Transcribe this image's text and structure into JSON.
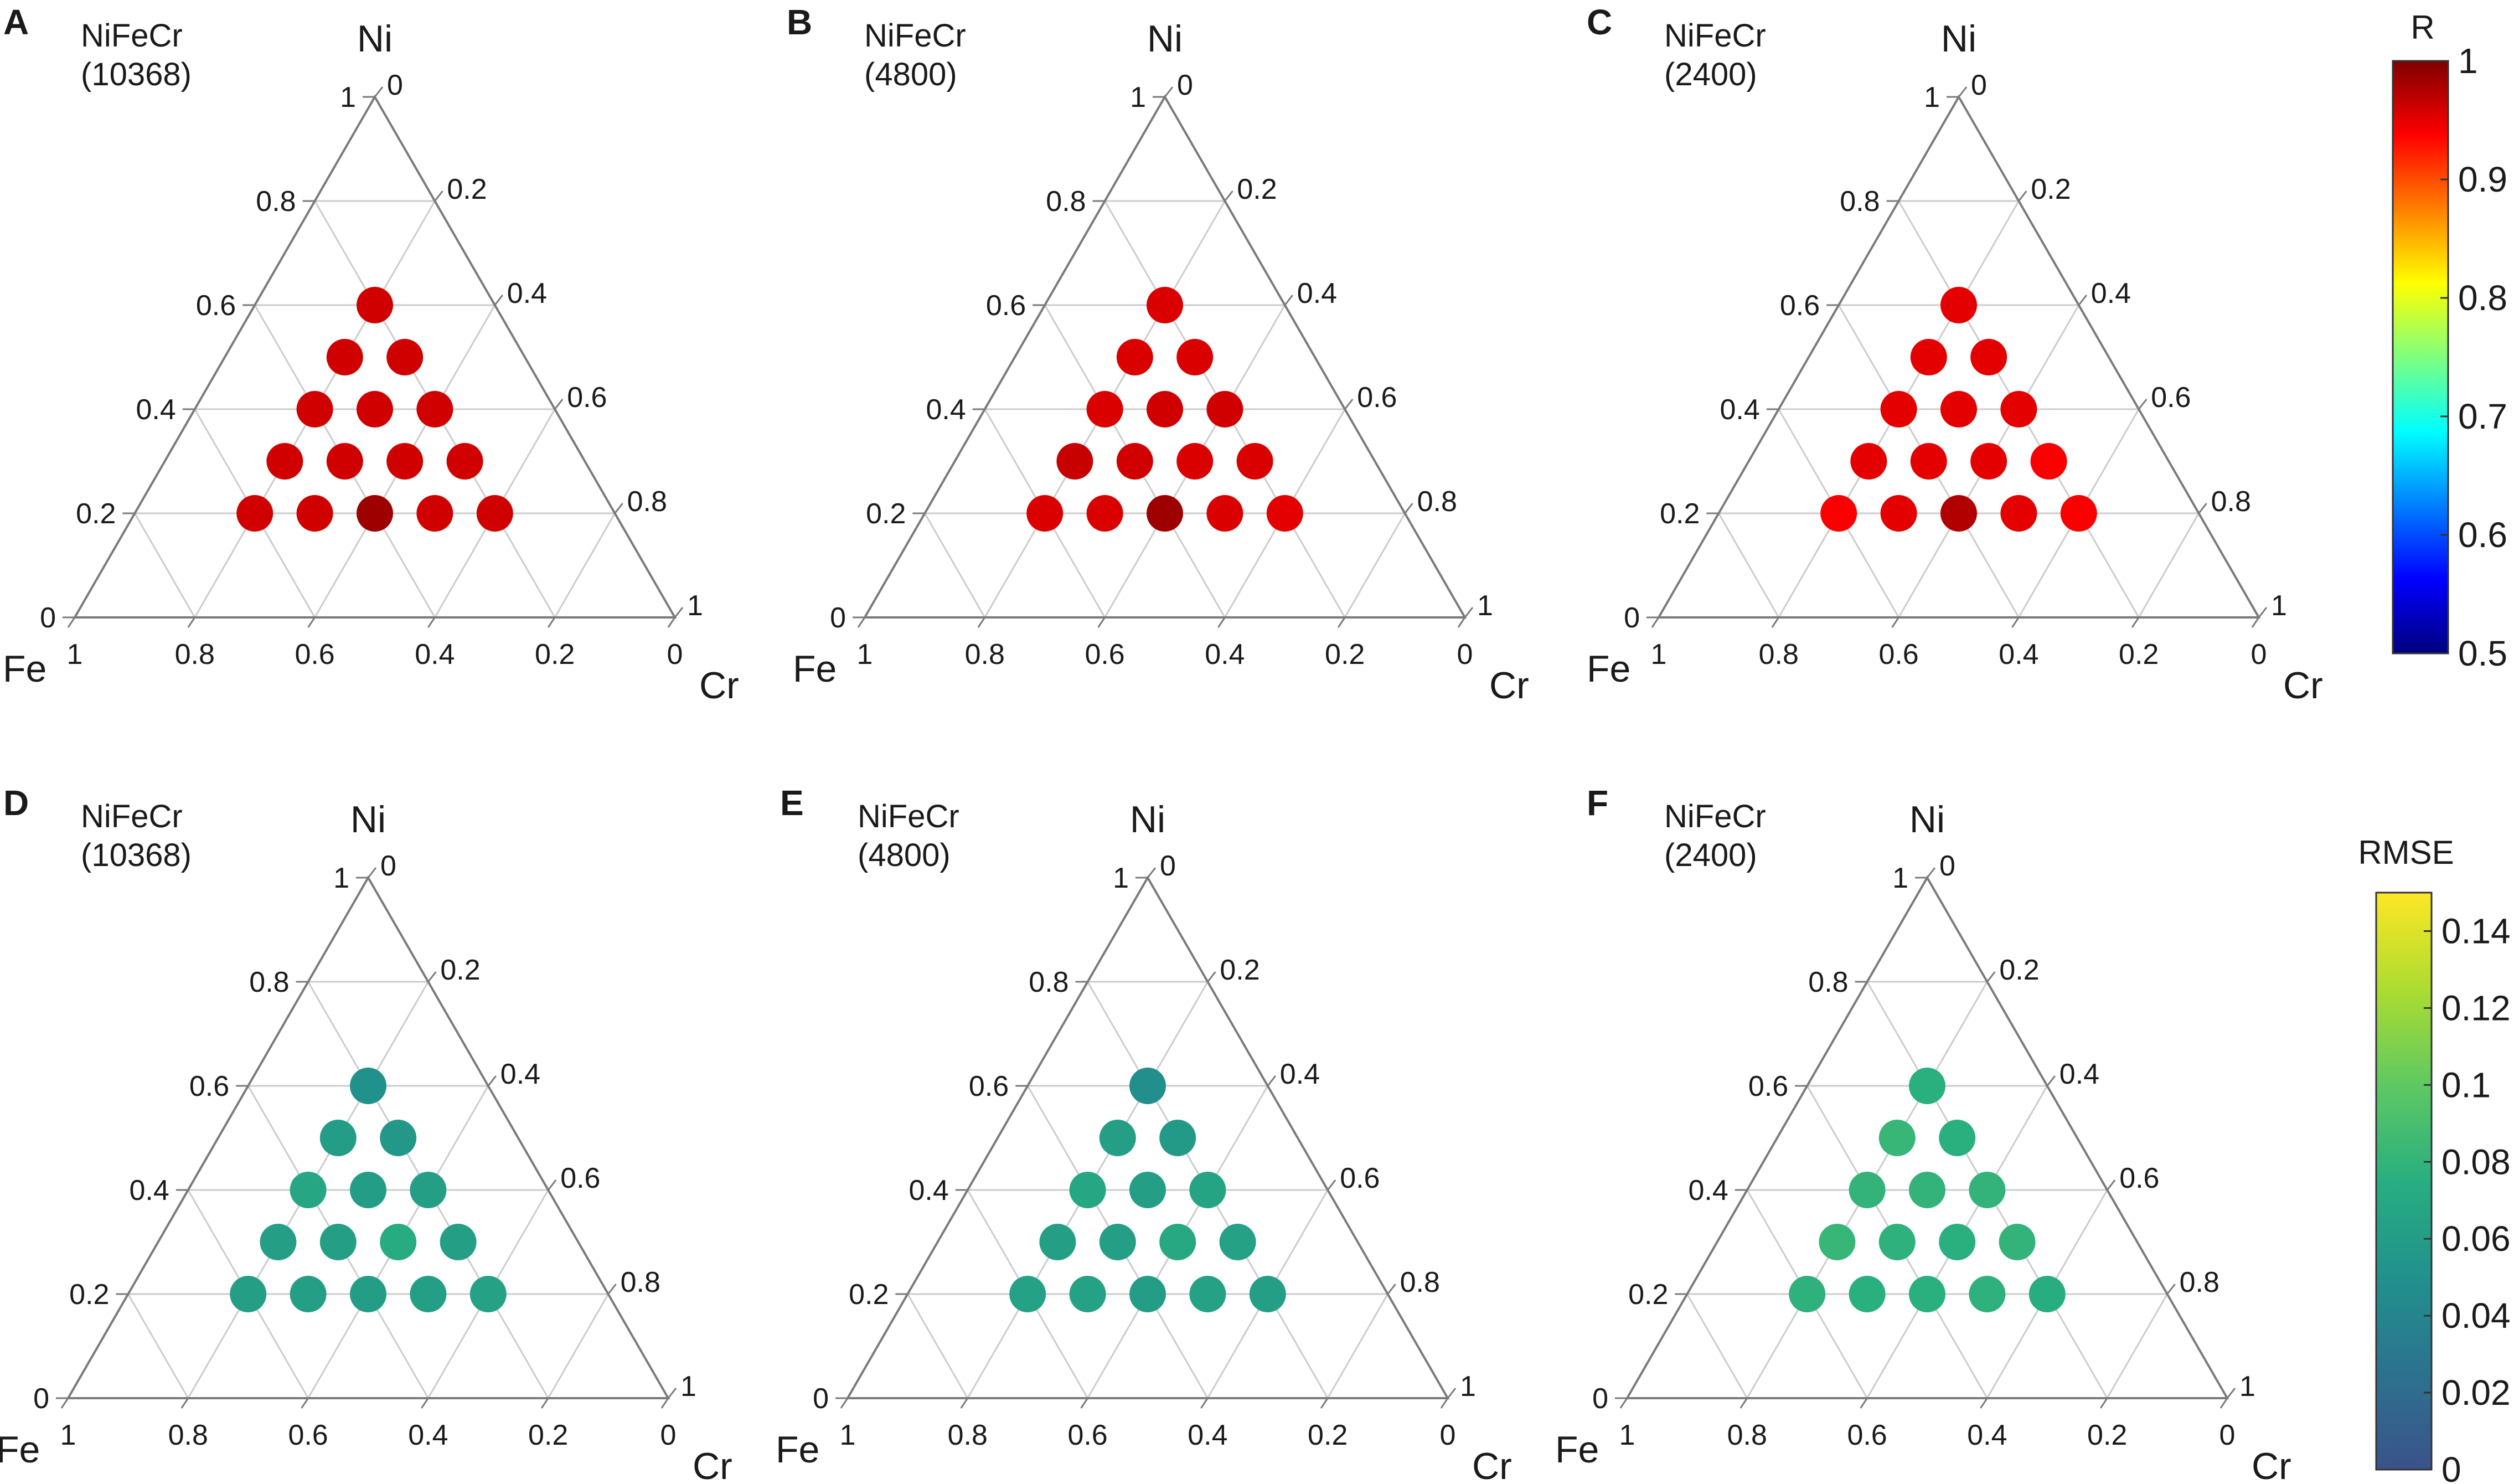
{
  "figure": {
    "panels": [
      {
        "letter": "A",
        "system": "NiFeCr",
        "count": "(10368)",
        "metric": "R"
      },
      {
        "letter": "B",
        "system": "NiFeCr",
        "count": "(4800)",
        "metric": "R"
      },
      {
        "letter": "C",
        "system": "NiFeCr",
        "count": "(2400)",
        "metric": "R"
      },
      {
        "letter": "D",
        "system": "NiFeCr",
        "count": "(10368)",
        "metric": "RMSE"
      },
      {
        "letter": "E",
        "system": "NiFeCr",
        "count": "(4800)",
        "metric": "RMSE"
      },
      {
        "letter": "F",
        "system": "NiFeCr",
        "count": "(2400)",
        "metric": "RMSE"
      }
    ],
    "axes": {
      "top": "Ni",
      "left": "Fe",
      "right": "Cr",
      "ticks_left_side": [
        "0",
        "0.2",
        "0.4",
        "0.6",
        "0.8",
        "1"
      ],
      "ticks_right_side": [
        "0",
        "0.2",
        "0.4",
        "0.6",
        "0.8",
        "1"
      ],
      "ticks_bottom": [
        "1",
        "0.8",
        "0.6",
        "0.4",
        "0.2",
        "0"
      ]
    },
    "colorbars": [
      {
        "title": "R",
        "ticks": [
          "1",
          "0.9",
          "0.8",
          "0.7",
          "0.6",
          "0.5"
        ],
        "range": [
          0.5,
          1
        ],
        "colormap": "jet",
        "stops": [
          "#00007f",
          "#0000ff",
          "#007fff",
          "#00ffff",
          "#7fff7f",
          "#ffff00",
          "#ff7f00",
          "#ff0000",
          "#7f0000"
        ]
      },
      {
        "title": "RMSE",
        "ticks": [
          "0.14",
          "0.12",
          "0.1",
          "0.08",
          "0.06",
          "0.04",
          "0.02",
          "0"
        ],
        "range": [
          0,
          0.15
        ],
        "colormap": "viridis",
        "stops": [
          "#3b528b",
          "#2c728e",
          "#21918c",
          "#28ae80",
          "#5ec962",
          "#addc30",
          "#fde725"
        ]
      }
    ],
    "grid_color": "#cccccc",
    "frame_color": "#7a7a7a"
  },
  "chart_data": [
    {
      "type": "scatter",
      "panel": "A",
      "title": "NiFeCr (10368)",
      "axes": [
        "Ni",
        "Fe",
        "Cr"
      ],
      "metric": "R",
      "scale": [
        0.5,
        1
      ],
      "points": [
        {
          "Ni": 0.6,
          "Fe": 0.2,
          "Cr": 0.2,
          "value": 0.96
        },
        {
          "Ni": 0.5,
          "Fe": 0.3,
          "Cr": 0.2,
          "value": 0.96
        },
        {
          "Ni": 0.5,
          "Fe": 0.2,
          "Cr": 0.3,
          "value": 0.96
        },
        {
          "Ni": 0.4,
          "Fe": 0.4,
          "Cr": 0.2,
          "value": 0.96
        },
        {
          "Ni": 0.4,
          "Fe": 0.3,
          "Cr": 0.3,
          "value": 0.96
        },
        {
          "Ni": 0.4,
          "Fe": 0.2,
          "Cr": 0.4,
          "value": 0.96
        },
        {
          "Ni": 0.3,
          "Fe": 0.5,
          "Cr": 0.2,
          "value": 0.96
        },
        {
          "Ni": 0.3,
          "Fe": 0.4,
          "Cr": 0.3,
          "value": 0.96
        },
        {
          "Ni": 0.3,
          "Fe": 0.3,
          "Cr": 0.4,
          "value": 0.96
        },
        {
          "Ni": 0.3,
          "Fe": 0.2,
          "Cr": 0.5,
          "value": 0.96
        },
        {
          "Ni": 0.2,
          "Fe": 0.6,
          "Cr": 0.2,
          "value": 0.96
        },
        {
          "Ni": 0.2,
          "Fe": 0.5,
          "Cr": 0.3,
          "value": 0.96
        },
        {
          "Ni": 0.2,
          "Fe": 0.4,
          "Cr": 0.4,
          "value": 0.985
        },
        {
          "Ni": 0.2,
          "Fe": 0.3,
          "Cr": 0.5,
          "value": 0.96
        },
        {
          "Ni": 0.2,
          "Fe": 0.2,
          "Cr": 0.6,
          "value": 0.96
        }
      ]
    },
    {
      "type": "scatter",
      "panel": "B",
      "title": "NiFeCr (4800)",
      "axes": [
        "Ni",
        "Fe",
        "Cr"
      ],
      "metric": "R",
      "scale": [
        0.5,
        1
      ],
      "points": [
        {
          "Ni": 0.6,
          "Fe": 0.2,
          "Cr": 0.2,
          "value": 0.955
        },
        {
          "Ni": 0.5,
          "Fe": 0.3,
          "Cr": 0.2,
          "value": 0.955
        },
        {
          "Ni": 0.5,
          "Fe": 0.2,
          "Cr": 0.3,
          "value": 0.955
        },
        {
          "Ni": 0.4,
          "Fe": 0.4,
          "Cr": 0.2,
          "value": 0.955
        },
        {
          "Ni": 0.4,
          "Fe": 0.3,
          "Cr": 0.3,
          "value": 0.96
        },
        {
          "Ni": 0.4,
          "Fe": 0.2,
          "Cr": 0.4,
          "value": 0.96
        },
        {
          "Ni": 0.3,
          "Fe": 0.5,
          "Cr": 0.2,
          "value": 0.965
        },
        {
          "Ni": 0.3,
          "Fe": 0.4,
          "Cr": 0.3,
          "value": 0.96
        },
        {
          "Ni": 0.3,
          "Fe": 0.3,
          "Cr": 0.4,
          "value": 0.955
        },
        {
          "Ni": 0.3,
          "Fe": 0.2,
          "Cr": 0.5,
          "value": 0.955
        },
        {
          "Ni": 0.2,
          "Fe": 0.6,
          "Cr": 0.2,
          "value": 0.955
        },
        {
          "Ni": 0.2,
          "Fe": 0.5,
          "Cr": 0.3,
          "value": 0.955
        },
        {
          "Ni": 0.2,
          "Fe": 0.4,
          "Cr": 0.4,
          "value": 0.985
        },
        {
          "Ni": 0.2,
          "Fe": 0.3,
          "Cr": 0.5,
          "value": 0.955
        },
        {
          "Ni": 0.2,
          "Fe": 0.2,
          "Cr": 0.6,
          "value": 0.95
        }
      ]
    },
    {
      "type": "scatter",
      "panel": "C",
      "title": "NiFeCr (2400)",
      "axes": [
        "Ni",
        "Fe",
        "Cr"
      ],
      "metric": "R",
      "scale": [
        0.5,
        1
      ],
      "points": [
        {
          "Ni": 0.6,
          "Fe": 0.2,
          "Cr": 0.2,
          "value": 0.95
        },
        {
          "Ni": 0.5,
          "Fe": 0.3,
          "Cr": 0.2,
          "value": 0.95
        },
        {
          "Ni": 0.5,
          "Fe": 0.2,
          "Cr": 0.3,
          "value": 0.95
        },
        {
          "Ni": 0.4,
          "Fe": 0.4,
          "Cr": 0.2,
          "value": 0.95
        },
        {
          "Ni": 0.4,
          "Fe": 0.3,
          "Cr": 0.3,
          "value": 0.95
        },
        {
          "Ni": 0.4,
          "Fe": 0.2,
          "Cr": 0.4,
          "value": 0.95
        },
        {
          "Ni": 0.3,
          "Fe": 0.5,
          "Cr": 0.2,
          "value": 0.95
        },
        {
          "Ni": 0.3,
          "Fe": 0.4,
          "Cr": 0.3,
          "value": 0.95
        },
        {
          "Ni": 0.3,
          "Fe": 0.3,
          "Cr": 0.4,
          "value": 0.95
        },
        {
          "Ni": 0.3,
          "Fe": 0.2,
          "Cr": 0.5,
          "value": 0.94
        },
        {
          "Ni": 0.2,
          "Fe": 0.6,
          "Cr": 0.2,
          "value": 0.94
        },
        {
          "Ni": 0.2,
          "Fe": 0.5,
          "Cr": 0.3,
          "value": 0.95
        },
        {
          "Ni": 0.2,
          "Fe": 0.4,
          "Cr": 0.4,
          "value": 0.975
        },
        {
          "Ni": 0.2,
          "Fe": 0.3,
          "Cr": 0.5,
          "value": 0.95
        },
        {
          "Ni": 0.2,
          "Fe": 0.2,
          "Cr": 0.6,
          "value": 0.94
        }
      ]
    },
    {
      "type": "scatter",
      "panel": "D",
      "title": "NiFeCr (10368)",
      "axes": [
        "Ni",
        "Fe",
        "Cr"
      ],
      "metric": "RMSE",
      "scale": [
        0,
        0.15
      ],
      "points": [
        {
          "Ni": 0.6,
          "Fe": 0.2,
          "Cr": 0.2,
          "value": 0.05
        },
        {
          "Ni": 0.5,
          "Fe": 0.3,
          "Cr": 0.2,
          "value": 0.06
        },
        {
          "Ni": 0.5,
          "Fe": 0.2,
          "Cr": 0.3,
          "value": 0.056
        },
        {
          "Ni": 0.4,
          "Fe": 0.4,
          "Cr": 0.2,
          "value": 0.068
        },
        {
          "Ni": 0.4,
          "Fe": 0.3,
          "Cr": 0.3,
          "value": 0.06
        },
        {
          "Ni": 0.4,
          "Fe": 0.2,
          "Cr": 0.4,
          "value": 0.062
        },
        {
          "Ni": 0.3,
          "Fe": 0.5,
          "Cr": 0.2,
          "value": 0.062
        },
        {
          "Ni": 0.3,
          "Fe": 0.4,
          "Cr": 0.3,
          "value": 0.062
        },
        {
          "Ni": 0.3,
          "Fe": 0.3,
          "Cr": 0.4,
          "value": 0.072
        },
        {
          "Ni": 0.3,
          "Fe": 0.2,
          "Cr": 0.5,
          "value": 0.062
        },
        {
          "Ni": 0.2,
          "Fe": 0.6,
          "Cr": 0.2,
          "value": 0.062
        },
        {
          "Ni": 0.2,
          "Fe": 0.5,
          "Cr": 0.3,
          "value": 0.062
        },
        {
          "Ni": 0.2,
          "Fe": 0.4,
          "Cr": 0.4,
          "value": 0.06
        },
        {
          "Ni": 0.2,
          "Fe": 0.3,
          "Cr": 0.5,
          "value": 0.062
        },
        {
          "Ni": 0.2,
          "Fe": 0.2,
          "Cr": 0.6,
          "value": 0.064
        }
      ]
    },
    {
      "type": "scatter",
      "panel": "E",
      "title": "NiFeCr (4800)",
      "axes": [
        "Ni",
        "Fe",
        "Cr"
      ],
      "metric": "RMSE",
      "scale": [
        0,
        0.15
      ],
      "points": [
        {
          "Ni": 0.6,
          "Fe": 0.2,
          "Cr": 0.2,
          "value": 0.048
        },
        {
          "Ni": 0.5,
          "Fe": 0.3,
          "Cr": 0.2,
          "value": 0.062
        },
        {
          "Ni": 0.5,
          "Fe": 0.2,
          "Cr": 0.3,
          "value": 0.058
        },
        {
          "Ni": 0.4,
          "Fe": 0.4,
          "Cr": 0.2,
          "value": 0.068
        },
        {
          "Ni": 0.4,
          "Fe": 0.3,
          "Cr": 0.3,
          "value": 0.062
        },
        {
          "Ni": 0.4,
          "Fe": 0.2,
          "Cr": 0.4,
          "value": 0.066
        },
        {
          "Ni": 0.3,
          "Fe": 0.5,
          "Cr": 0.2,
          "value": 0.062
        },
        {
          "Ni": 0.3,
          "Fe": 0.4,
          "Cr": 0.3,
          "value": 0.062
        },
        {
          "Ni": 0.3,
          "Fe": 0.3,
          "Cr": 0.4,
          "value": 0.07
        },
        {
          "Ni": 0.3,
          "Fe": 0.2,
          "Cr": 0.5,
          "value": 0.064
        },
        {
          "Ni": 0.2,
          "Fe": 0.6,
          "Cr": 0.2,
          "value": 0.064
        },
        {
          "Ni": 0.2,
          "Fe": 0.5,
          "Cr": 0.3,
          "value": 0.064
        },
        {
          "Ni": 0.2,
          "Fe": 0.4,
          "Cr": 0.4,
          "value": 0.06
        },
        {
          "Ni": 0.2,
          "Fe": 0.3,
          "Cr": 0.5,
          "value": 0.064
        },
        {
          "Ni": 0.2,
          "Fe": 0.2,
          "Cr": 0.6,
          "value": 0.062
        }
      ]
    },
    {
      "type": "scatter",
      "panel": "F",
      "title": "NiFeCr (2400)",
      "axes": [
        "Ni",
        "Fe",
        "Cr"
      ],
      "metric": "RMSE",
      "scale": [
        0,
        0.15
      ],
      "points": [
        {
          "Ni": 0.6,
          "Fe": 0.2,
          "Cr": 0.2,
          "value": 0.076
        },
        {
          "Ni": 0.5,
          "Fe": 0.3,
          "Cr": 0.2,
          "value": 0.082
        },
        {
          "Ni": 0.5,
          "Fe": 0.2,
          "Cr": 0.3,
          "value": 0.076
        },
        {
          "Ni": 0.4,
          "Fe": 0.4,
          "Cr": 0.2,
          "value": 0.08
        },
        {
          "Ni": 0.4,
          "Fe": 0.3,
          "Cr": 0.3,
          "value": 0.08
        },
        {
          "Ni": 0.4,
          "Fe": 0.2,
          "Cr": 0.4,
          "value": 0.08
        },
        {
          "Ni": 0.3,
          "Fe": 0.5,
          "Cr": 0.2,
          "value": 0.082
        },
        {
          "Ni": 0.3,
          "Fe": 0.4,
          "Cr": 0.3,
          "value": 0.078
        },
        {
          "Ni": 0.3,
          "Fe": 0.3,
          "Cr": 0.4,
          "value": 0.076
        },
        {
          "Ni": 0.3,
          "Fe": 0.2,
          "Cr": 0.5,
          "value": 0.08
        },
        {
          "Ni": 0.2,
          "Fe": 0.6,
          "Cr": 0.2,
          "value": 0.078
        },
        {
          "Ni": 0.2,
          "Fe": 0.5,
          "Cr": 0.3,
          "value": 0.076
        },
        {
          "Ni": 0.2,
          "Fe": 0.4,
          "Cr": 0.4,
          "value": 0.076
        },
        {
          "Ni": 0.2,
          "Fe": 0.3,
          "Cr": 0.5,
          "value": 0.078
        },
        {
          "Ni": 0.2,
          "Fe": 0.2,
          "Cr": 0.6,
          "value": 0.074
        }
      ]
    }
  ]
}
